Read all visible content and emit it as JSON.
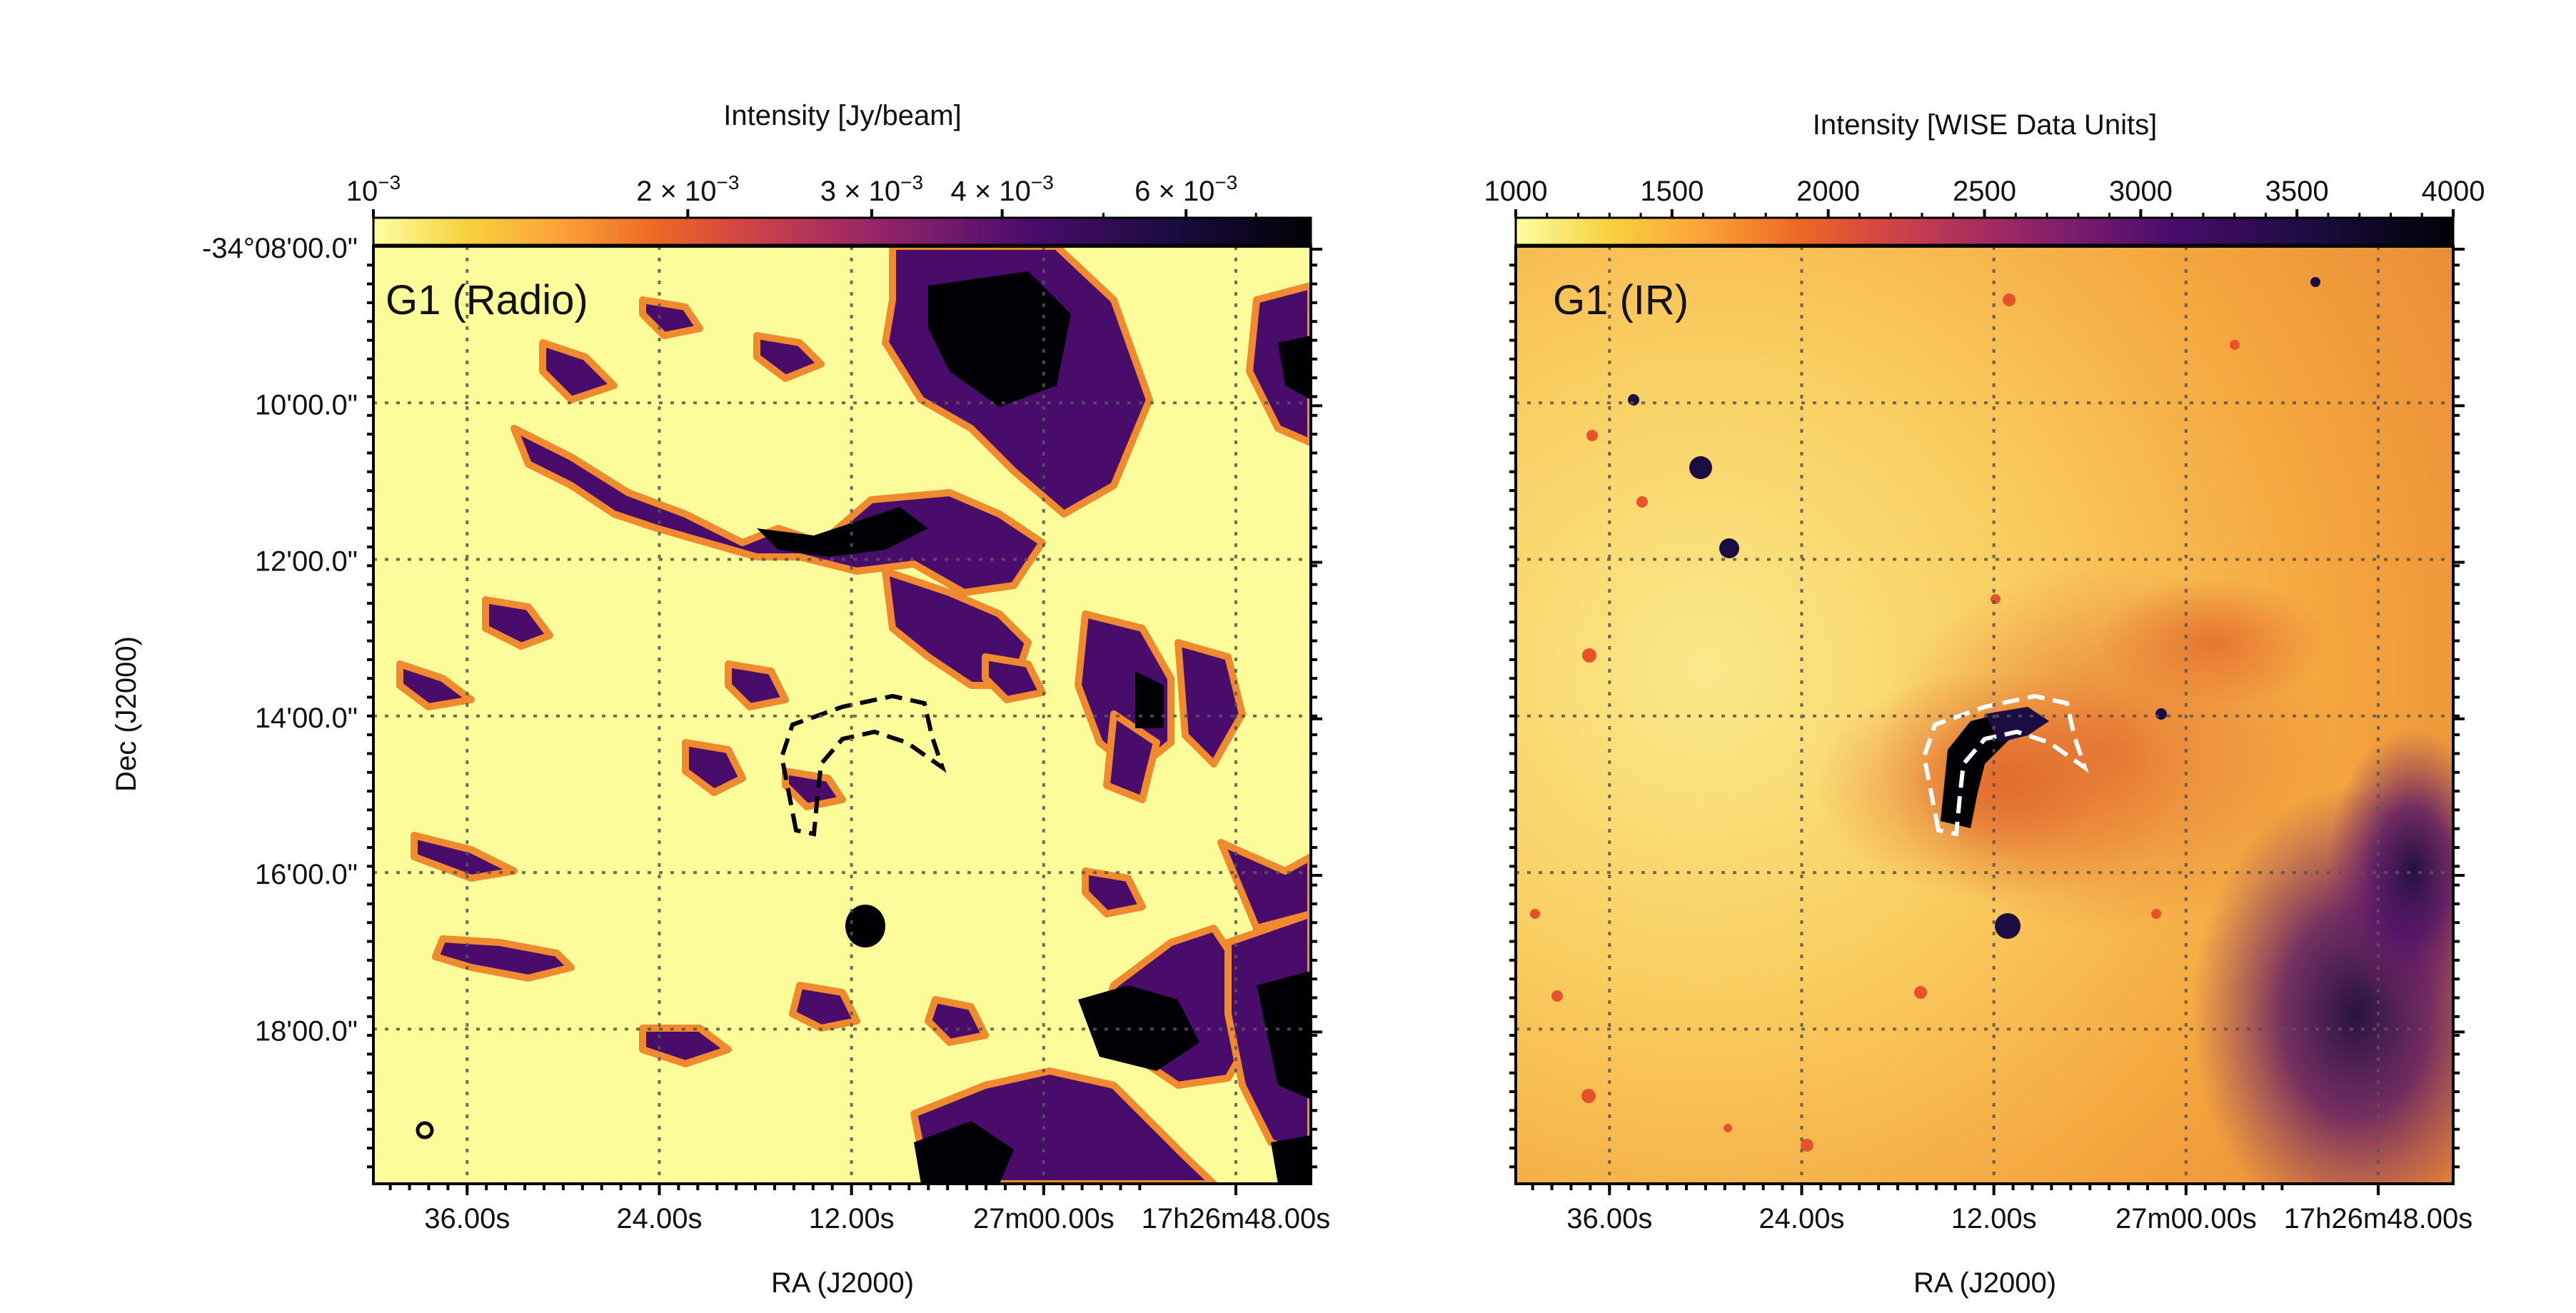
{
  "chart_data": [
    {
      "type": "heatmap",
      "title": "G1 (Radio)",
      "xlabel": "RA (J2000)",
      "ylabel": "Dec (J2000)",
      "x_tick_labels": [
        "36.00s",
        "24.00s",
        "12.00s",
        "27m00.00s",
        "17h26m48.00s"
      ],
      "y_tick_labels": [
        "-34°08'00.0\"",
        "10'00.0\"",
        "12'00.0\"",
        "14'00.0\"",
        "16'00.0\"",
        "18'00.0\""
      ],
      "grid": true,
      "colormap": "inferno_r",
      "colorbar": {
        "label": "Intensity [Jy/beam]",
        "scale": "log",
        "range": [
          0.001,
          0.0079
        ],
        "tick_values": [
          0.001,
          0.002,
          0.003,
          0.004,
          0.006
        ],
        "tick_labels": [
          {
            "base": "10",
            "exp": "−3"
          },
          {
            "base": "2 × 10",
            "exp": "−3"
          },
          {
            "base": "3 × 10",
            "exp": "−3"
          },
          {
            "base": "4 × 10",
            "exp": "−3"
          },
          {
            "base": "6 × 10",
            "exp": "−3"
          }
        ]
      },
      "region_outline": {
        "shape": "dashed crescent arc",
        "color": "#000000"
      },
      "beam_marker": true
    },
    {
      "type": "heatmap",
      "title": "G1 (IR)",
      "xlabel": "RA (J2000)",
      "ylabel": "",
      "x_tick_labels": [
        "36.00s",
        "24.00s",
        "12.00s",
        "27m00.00s",
        "17h26m48.00s"
      ],
      "grid": true,
      "colormap": "inferno_r",
      "colorbar": {
        "label": "Intensity [WISE Data Units]",
        "scale": "linear",
        "range": [
          1000,
          4000
        ],
        "tick_values": [
          1000,
          1500,
          2000,
          2500,
          3000,
          3500,
          4000
        ],
        "tick_labels": [
          "1000",
          "1500",
          "2000",
          "2500",
          "3000",
          "3500",
          "4000"
        ]
      },
      "region_outline": {
        "shape": "dashed crescent arc",
        "color": "#ffffff"
      }
    }
  ]
}
